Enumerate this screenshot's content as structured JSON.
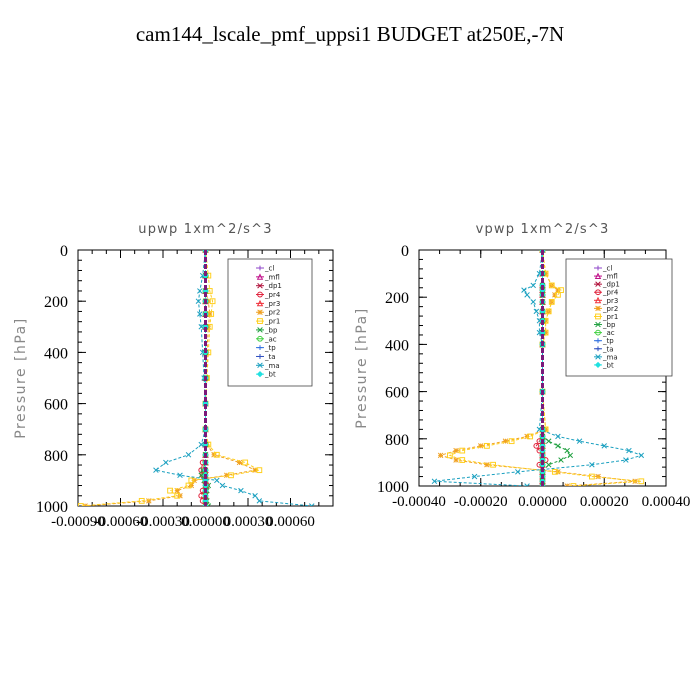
{
  "figure_title": "cam144_lscale_pmf_uppsi1  BUDGET at250E,-7N",
  "colors": {
    "_cl": "#8e44c9",
    "_mfl": "#c0108a",
    "_dp1": "#b0103a",
    "_pr4": "#e0203a",
    "_pr3": "#f0303a",
    "_pr2": "#f0a020",
    "_pr1": "#ffd020",
    "_bp": "#20a040",
    "_ac": "#40d040",
    "_tp": "#3070e0",
    "_ta": "#3050c0",
    "_ma": "#1aa0c0",
    "_bt": "#20e0e0"
  },
  "chart_data": [
    {
      "type": "line",
      "title": "upwp   1xm^2/s^3",
      "xlabel": "",
      "ylabel": "Pressure [hPa]",
      "xlim": [
        -0.0009,
        0.0009
      ],
      "ylim": [
        1000,
        0
      ],
      "x_ticks": [
        -0.0009,
        -0.0006,
        -0.0003,
        0.0,
        0.0003,
        0.0006
      ],
      "x_tick_labels": [
        "-0.00090",
        "-0.00060",
        "-0.00030",
        "0.00000",
        "0.00030",
        "0.00060"
      ],
      "y_ticks": [
        0,
        200,
        400,
        600,
        800,
        1000
      ],
      "y_tick_labels": [
        "0",
        "200",
        "400",
        "600",
        "800",
        "1000"
      ],
      "legend_position": "top-right",
      "grid": false,
      "pressure": [
        0,
        100,
        160,
        200,
        250,
        300,
        400,
        500,
        600,
        700,
        760,
        800,
        830,
        860,
        880,
        900,
        920,
        940,
        960,
        980,
        1000
      ],
      "series": [
        {
          "name": "_cl",
          "values": [
            0,
            0,
            0,
            0,
            0,
            0,
            0,
            0,
            0,
            0,
            0,
            0,
            0,
            0,
            0,
            0,
            0,
            0,
            0,
            0,
            0
          ]
        },
        {
          "name": "_mfl",
          "values": [
            0,
            0,
            0,
            0,
            0,
            0,
            0,
            0,
            0,
            0,
            0,
            0,
            0,
            0,
            0,
            0,
            0,
            0,
            0,
            0,
            0
          ]
        },
        {
          "name": "_dp1",
          "values": [
            0,
            0,
            0,
            0,
            0,
            0,
            0,
            0,
            0,
            0,
            0,
            0,
            0,
            0,
            0,
            0,
            0,
            0,
            0,
            0,
            0
          ]
        },
        {
          "name": "_pr4",
          "values": [
            0,
            0,
            0,
            0,
            0,
            0,
            0,
            0,
            0,
            0,
            0,
            0,
            -2e-05,
            -3e-05,
            -2e-05,
            0,
            1e-05,
            -2e-05,
            -3e-05,
            -2e-05,
            0
          ]
        },
        {
          "name": "_pr3",
          "values": [
            0,
            0,
            0,
            0,
            0,
            0,
            0,
            0,
            0,
            0,
            0,
            0,
            0,
            0,
            0,
            0,
            0,
            0,
            0,
            0,
            0
          ]
        },
        {
          "name": "_pr2",
          "values": [
            0,
            0,
            0,
            2e-05,
            3e-05,
            2e-05,
            1e-05,
            1e-05,
            0,
            0,
            1e-05,
            6e-05,
            0.00024,
            0.00035,
            0.00015,
            -8e-05,
            -0.0001,
            -0.0002,
            -0.00018,
            -0.0004,
            -0.00085
          ]
        },
        {
          "name": "_pr1",
          "values": [
            0,
            2e-05,
            3e-05,
            5e-05,
            4e-05,
            3e-05,
            2e-05,
            1e-05,
            0,
            0,
            2e-05,
            8e-05,
            0.00028,
            0.00038,
            0.00018,
            -0.0001,
            -0.00012,
            -0.00025,
            -0.0002,
            -0.00045,
            -0.00088
          ]
        },
        {
          "name": "_bp",
          "values": [
            0,
            0,
            0,
            0,
            0,
            0,
            0,
            0,
            0,
            0,
            0,
            0,
            0,
            -2e-05,
            -3e-05,
            -1e-05,
            2e-05,
            1e-05,
            0,
            1e-05,
            2e-05
          ]
        },
        {
          "name": "_ac",
          "values": [
            0,
            0,
            0,
            0,
            0,
            0,
            0,
            0,
            0,
            0,
            0,
            0,
            0,
            0,
            0,
            0,
            0,
            0,
            0,
            0,
            0
          ]
        },
        {
          "name": "_tp",
          "values": [
            0,
            0,
            0,
            0,
            0,
            0,
            0,
            0,
            0,
            0,
            0,
            0,
            0,
            0,
            0,
            0,
            0,
            0,
            0,
            0,
            0
          ]
        },
        {
          "name": "_ta",
          "values": [
            0,
            0,
            0,
            0,
            0,
            0,
            0,
            0,
            0,
            0,
            0,
            0,
            0,
            0,
            0,
            0,
            0,
            0,
            0,
            0,
            0
          ]
        },
        {
          "name": "_ma",
          "values": [
            0,
            -2e-05,
            -4e-05,
            -5e-05,
            -4e-05,
            -3e-05,
            -2e-05,
            -1e-05,
            0,
            0,
            -3e-05,
            -0.00012,
            -0.00028,
            -0.00035,
            -0.00018,
            8e-05,
            0.00012,
            0.00025,
            0.00035,
            0.00038,
            0.00075
          ]
        },
        {
          "name": "_bt",
          "values": [
            0,
            0,
            0,
            0,
            0,
            0,
            0,
            0,
            0,
            0,
            0,
            0,
            0,
            0,
            0,
            0,
            0,
            0,
            0,
            0,
            0
          ]
        }
      ]
    },
    {
      "type": "line",
      "title": "vpwp   1xm^2/s^3",
      "xlabel": "",
      "ylabel": "Pressure [hPa]",
      "xlim": [
        -0.0004,
        0.0004
      ],
      "ylim": [
        1000,
        0
      ],
      "x_ticks": [
        -0.0004,
        -0.0002,
        0.0,
        0.0002,
        0.0004
      ],
      "x_tick_labels": [
        "-0.00040",
        "-0.00020",
        "0.00000",
        "0.00020",
        "0.00040"
      ],
      "y_ticks": [
        0,
        200,
        400,
        600,
        800,
        1000
      ],
      "y_tick_labels": [
        "0",
        "200",
        "400",
        "600",
        "800",
        "1000"
      ],
      "legend_position": "top-right",
      "grid": false,
      "pressure": [
        0,
        100,
        150,
        170,
        190,
        220,
        260,
        300,
        350,
        400,
        600,
        760,
        790,
        810,
        830,
        850,
        870,
        890,
        910,
        940,
        960,
        980,
        1000
      ],
      "series": [
        {
          "name": "_cl",
          "values": [
            0,
            0,
            0,
            0,
            0,
            0,
            0,
            0,
            0,
            0,
            0,
            0,
            0,
            0,
            0,
            0,
            0,
            0,
            0,
            0,
            0,
            0,
            0
          ]
        },
        {
          "name": "_mfl",
          "values": [
            0,
            0,
            0,
            0,
            0,
            0,
            0,
            0,
            0,
            0,
            0,
            0,
            0,
            0,
            0,
            0,
            0,
            0,
            0,
            0,
            0,
            0,
            0
          ]
        },
        {
          "name": "_dp1",
          "values": [
            0,
            0,
            0,
            0,
            0,
            0,
            0,
            0,
            0,
            0,
            0,
            0,
            0,
            0,
            0,
            0,
            0,
            0,
            0,
            0,
            0,
            0,
            0
          ]
        },
        {
          "name": "_pr4",
          "values": [
            0,
            0,
            0,
            0,
            0,
            0,
            0,
            0,
            0,
            0,
            0,
            0,
            0,
            -1e-05,
            -2e-05,
            -1e-05,
            0,
            1e-05,
            -1e-05,
            0,
            0,
            0,
            0
          ]
        },
        {
          "name": "_pr3",
          "values": [
            0,
            0,
            0,
            0,
            0,
            0,
            0,
            0,
            0,
            0,
            0,
            0,
            0,
            0,
            0,
            0,
            0,
            0,
            0,
            0,
            0,
            0,
            0
          ]
        },
        {
          "name": "_pr2",
          "values": [
            0,
            1e-05,
            3e-05,
            5e-05,
            4e-05,
            3e-05,
            2e-05,
            1e-05,
            1e-05,
            0,
            0,
            1e-05,
            -5e-05,
            -0.00012,
            -0.0002,
            -0.00028,
            -0.00033,
            -0.00028,
            -0.00018,
            5e-05,
            0.00018,
            0.0003,
            8e-05
          ]
        },
        {
          "name": "_pr1",
          "values": [
            0,
            1e-05,
            3e-05,
            6e-05,
            5e-05,
            3e-05,
            2e-05,
            1e-05,
            1e-05,
            0,
            0,
            1e-05,
            -4e-05,
            -0.0001,
            -0.00018,
            -0.00026,
            -0.0003,
            -0.00026,
            -0.00016,
            4e-05,
            0.00016,
            0.00032,
            0.0001
          ]
        },
        {
          "name": "_bp",
          "values": [
            0,
            0,
            0,
            0,
            0,
            0,
            0,
            0,
            0,
            0,
            0,
            0,
            0,
            2e-05,
            5e-05,
            8e-05,
            9e-05,
            6e-05,
            2e-05,
            0,
            0,
            0,
            0
          ]
        },
        {
          "name": "_ac",
          "values": [
            0,
            0,
            0,
            0,
            0,
            0,
            0,
            0,
            0,
            0,
            0,
            0,
            0,
            0,
            0,
            0,
            0,
            0,
            0,
            0,
            0,
            0,
            0
          ]
        },
        {
          "name": "_tp",
          "values": [
            0,
            0,
            0,
            0,
            0,
            0,
            0,
            0,
            0,
            0,
            0,
            0,
            0,
            0,
            0,
            0,
            0,
            0,
            0,
            0,
            0,
            0,
            0
          ]
        },
        {
          "name": "_ta",
          "values": [
            0,
            0,
            0,
            0,
            0,
            0,
            0,
            0,
            0,
            0,
            0,
            0,
            0,
            0,
            0,
            0,
            0,
            0,
            0,
            0,
            0,
            0,
            0
          ]
        },
        {
          "name": "_ma",
          "values": [
            0,
            -1e-05,
            -3e-05,
            -6e-05,
            -5e-05,
            -3e-05,
            -2e-05,
            -1e-05,
            -1e-05,
            0,
            0,
            -1e-05,
            5e-05,
            0.00012,
            0.0002,
            0.00028,
            0.00032,
            0.00027,
            0.00016,
            -8e-05,
            -0.00022,
            -0.00035,
            -5e-05
          ]
        },
        {
          "name": "_bt",
          "values": [
            0,
            0,
            0,
            0,
            0,
            0,
            0,
            0,
            0,
            0,
            0,
            0,
            0,
            0,
            0,
            0,
            0,
            0,
            0,
            0,
            0,
            0,
            0
          ]
        }
      ]
    }
  ]
}
